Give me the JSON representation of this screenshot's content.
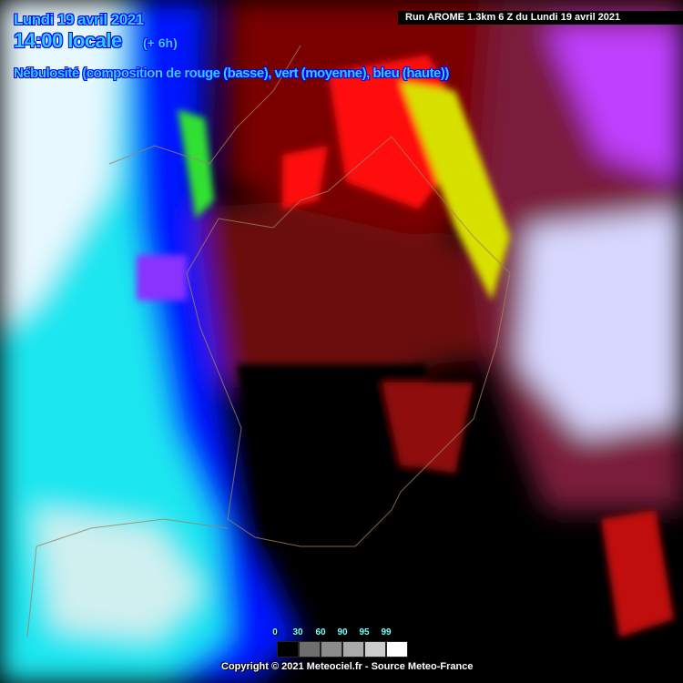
{
  "header": {
    "date": "Lundi 19 avril 2021",
    "time": "14:00 locale",
    "offset": "(+ 6h)",
    "title": "Nébulosité (composition de rouge (basse), vert (moyenne), bleu (haute))",
    "run": "Run AROME 1.3km 6 Z du Lundi 19 avril 2021"
  },
  "legend": {
    "labels": [
      "0",
      "30",
      "60",
      "90",
      "95",
      "99"
    ],
    "colors": [
      "#000000",
      "#6e6e6e",
      "#8c8c8c",
      "#aaaaaa",
      "#cccccc",
      "#ffffff"
    ]
  },
  "footer": {
    "copyright": "Copyright © 2021 Meteociel.fr - Source Meteo-France"
  },
  "map_colors": {
    "low_cloud": "#ff0000",
    "mid_cloud": "#00ff00",
    "high_cloud": "#0000ff",
    "land_clear": "#000000"
  }
}
